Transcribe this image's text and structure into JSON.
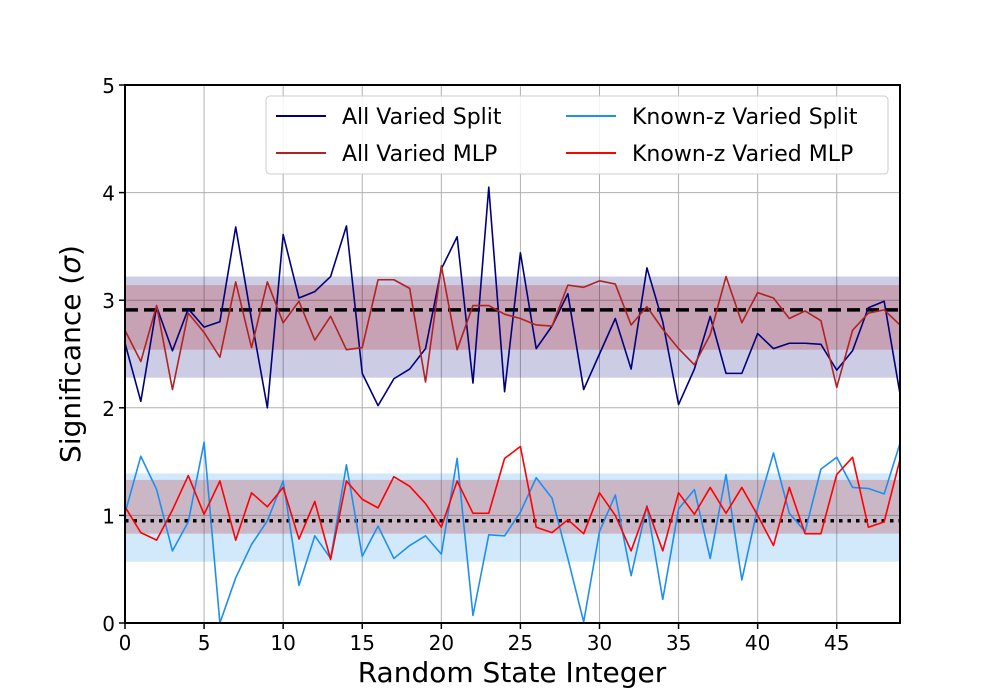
{
  "chart_data": {
    "type": "line",
    "title": "",
    "xlabel": "Random State Integer",
    "ylabel_prefix": "Significance (",
    "ylabel_symbol": "σ",
    "ylabel_suffix": ")",
    "xlim": [
      0,
      49
    ],
    "ylim": [
      0,
      5
    ],
    "xticks": [
      0,
      5,
      10,
      15,
      20,
      25,
      30,
      35,
      40,
      45
    ],
    "yticks": [
      0,
      1,
      2,
      3,
      4,
      5
    ],
    "grid": true,
    "legend_position": "top-right",
    "x": [
      0,
      1,
      2,
      3,
      4,
      5,
      6,
      7,
      8,
      9,
      10,
      11,
      12,
      13,
      14,
      15,
      16,
      17,
      18,
      19,
      20,
      21,
      22,
      23,
      24,
      25,
      26,
      27,
      28,
      29,
      30,
      31,
      32,
      33,
      34,
      35,
      36,
      37,
      38,
      39,
      40,
      41,
      42,
      43,
      44,
      45,
      46,
      47,
      48,
      49
    ],
    "series": [
      {
        "name": "All Varied Split",
        "color": "#00007f",
        "values": [
          2.6,
          2.06,
          2.94,
          2.53,
          2.92,
          2.75,
          2.8,
          3.68,
          2.82,
          2.0,
          3.61,
          3.02,
          3.08,
          3.22,
          3.69,
          2.32,
          2.02,
          2.27,
          2.36,
          2.55,
          3.29,
          3.59,
          2.23,
          4.05,
          2.15,
          3.44,
          2.55,
          2.76,
          3.06,
          2.17,
          2.5,
          2.83,
          2.36,
          3.3,
          2.8,
          2.03,
          2.36,
          2.85,
          2.32,
          2.32,
          2.69,
          2.55,
          2.6,
          2.6,
          2.59,
          2.35,
          2.53,
          2.93,
          2.99,
          2.13
        ]
      },
      {
        "name": "All Varied MLP",
        "color": "#b22222",
        "values": [
          2.72,
          2.43,
          2.95,
          2.17,
          2.88,
          2.7,
          2.47,
          3.17,
          2.56,
          3.17,
          2.79,
          2.99,
          2.63,
          2.85,
          2.54,
          2.56,
          3.19,
          3.19,
          3.11,
          2.24,
          3.32,
          2.54,
          2.95,
          2.95,
          2.87,
          2.83,
          2.77,
          2.76,
          3.14,
          3.12,
          3.18,
          3.15,
          2.77,
          2.94,
          2.73,
          2.55,
          2.4,
          2.68,
          3.22,
          2.79,
          3.07,
          3.02,
          2.83,
          2.9,
          2.81,
          2.19,
          2.72,
          2.88,
          2.91,
          2.77
        ]
      },
      {
        "name": "Known-z Varied Split",
        "color": "#1e8ff0",
        "values": [
          1.02,
          1.55,
          1.24,
          0.67,
          0.94,
          1.68,
          0.0,
          0.42,
          0.73,
          0.95,
          1.32,
          0.35,
          0.81,
          0.6,
          1.47,
          0.62,
          0.9,
          0.6,
          0.72,
          0.81,
          0.64,
          1.53,
          0.07,
          0.82,
          0.81,
          1.03,
          1.35,
          1.16,
          0.6,
          0.01,
          0.85,
          1.19,
          0.44,
          1.09,
          0.22,
          1.06,
          1.24,
          0.6,
          1.38,
          0.4,
          1.07,
          1.58,
          1.02,
          0.85,
          1.43,
          1.54,
          1.26,
          1.25,
          1.2,
          1.67
        ]
      },
      {
        "name": "Known-z Varied MLP",
        "color": "#ff0000",
        "values": [
          1.08,
          0.84,
          0.77,
          1.05,
          1.37,
          1.01,
          1.32,
          0.77,
          1.21,
          1.08,
          1.26,
          0.78,
          1.13,
          0.59,
          1.32,
          1.15,
          1.07,
          1.36,
          1.27,
          1.11,
          0.89,
          1.32,
          1.02,
          1.02,
          1.53,
          1.64,
          0.89,
          0.84,
          0.96,
          0.83,
          1.21,
          1.0,
          0.67,
          1.08,
          0.67,
          1.21,
          1.01,
          1.26,
          1.02,
          1.26,
          1.0,
          0.72,
          1.26,
          0.83,
          0.83,
          1.38,
          1.54,
          0.89,
          0.94,
          1.52
        ]
      }
    ],
    "bands": [
      {
        "name": "All Varied Split range",
        "color": "#00007f",
        "opacity": 0.2,
        "low": 2.28,
        "high": 3.22
      },
      {
        "name": "All Varied MLP range",
        "color": "#b22222",
        "opacity": 0.25,
        "low": 2.54,
        "high": 3.14
      },
      {
        "name": "Known-z Varied Split range",
        "color": "#1e8ff0",
        "opacity": 0.2,
        "low": 0.57,
        "high": 1.39
      },
      {
        "name": "Known-z Varied MLP range",
        "color": "#b22222",
        "opacity": 0.25,
        "low": 0.83,
        "high": 1.33
      }
    ],
    "reference_lines": [
      {
        "name": "all-varied-mean",
        "value": 2.91,
        "style": "dashed",
        "color": "#000000"
      },
      {
        "name": "known-z-mean",
        "value": 0.95,
        "style": "dotted",
        "color": "#000000"
      }
    ]
  }
}
